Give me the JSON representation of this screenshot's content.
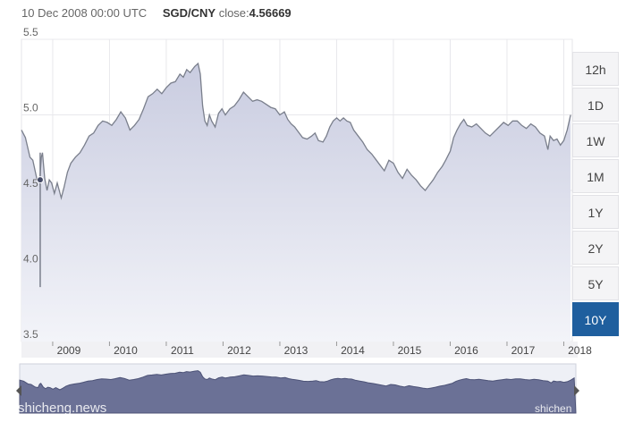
{
  "header": {
    "date": "10 Dec 2008 00:00 UTC",
    "pair": "SGD/CNY",
    "close_label": "close:",
    "close_value": "4.56669"
  },
  "range_buttons": [
    {
      "label": "12h",
      "active": false
    },
    {
      "label": "1D",
      "active": false
    },
    {
      "label": "1W",
      "active": false
    },
    {
      "label": "1M",
      "active": false
    },
    {
      "label": "1Y",
      "active": false
    },
    {
      "label": "2Y",
      "active": false
    },
    {
      "label": "5Y",
      "active": false
    },
    {
      "label": "10Y",
      "active": true
    }
  ],
  "watermarks": {
    "left": "shicheng.news",
    "right": "shichen"
  },
  "colors": {
    "line": "#7a7f8c",
    "area_top": "#c9cce0",
    "area_bottom": "#f3f4f9",
    "active_button": "#1f5f9e",
    "grid": "#e8e8ec",
    "navigator_fill": "#6b7196"
  },
  "chart_data": {
    "type": "area",
    "series": [
      {
        "points": [
          [
            "2008.45",
            4.9
          ],
          [
            "2008.52",
            4.85
          ],
          [
            "2008.60",
            4.72
          ],
          [
            "2008.65",
            4.7
          ],
          [
            "2008.72",
            4.58
          ],
          [
            "2008.77",
            4.55
          ],
          [
            "2008.80",
            4.72
          ],
          [
            "2008.82",
            4.75
          ],
          [
            "2008.86",
            4.58
          ],
          [
            "2008.90",
            4.5
          ],
          [
            "2008.94",
            4.57
          ],
          [
            "2008.98",
            4.55
          ],
          [
            "2009.03",
            4.48
          ],
          [
            "2009.08",
            4.55
          ],
          [
            "2009.15",
            4.45
          ],
          [
            "2009.20",
            4.52
          ],
          [
            "2009.26",
            4.62
          ],
          [
            "2009.32",
            4.68
          ],
          [
            "2009.40",
            4.72
          ],
          [
            "2009.48",
            4.75
          ],
          [
            "2009.56",
            4.8
          ],
          [
            "2009.64",
            4.86
          ],
          [
            "2009.72",
            4.88
          ],
          [
            "2009.80",
            4.93
          ],
          [
            "2009.88",
            4.96
          ],
          [
            "2009.96",
            4.95
          ],
          [
            "2010.04",
            4.93
          ],
          [
            "2010.12",
            4.97
          ],
          [
            "2010.20",
            5.02
          ],
          [
            "2010.28",
            4.98
          ],
          [
            "2010.36",
            4.9
          ],
          [
            "2010.44",
            4.93
          ],
          [
            "2010.52",
            4.97
          ],
          [
            "2010.60",
            5.04
          ],
          [
            "2010.68",
            5.12
          ],
          [
            "2010.76",
            5.14
          ],
          [
            "2010.84",
            5.17
          ],
          [
            "2010.92",
            5.14
          ],
          [
            "2011.00",
            5.18
          ],
          [
            "2011.08",
            5.21
          ],
          [
            "2011.16",
            5.22
          ],
          [
            "2011.24",
            5.27
          ],
          [
            "2011.30",
            5.25
          ],
          [
            "2011.36",
            5.3
          ],
          [
            "2011.42",
            5.28
          ],
          [
            "2011.50",
            5.32
          ],
          [
            "2011.56",
            5.34
          ],
          [
            "2011.60",
            5.27
          ],
          [
            "2011.64",
            5.06
          ],
          [
            "2011.68",
            4.96
          ],
          [
            "2011.72",
            4.93
          ],
          [
            "2011.76",
            5.0
          ],
          [
            "2011.80",
            4.96
          ],
          [
            "2011.86",
            4.92
          ],
          [
            "2011.92",
            5.01
          ],
          [
            "2011.98",
            5.04
          ],
          [
            "2012.04",
            5.0
          ],
          [
            "2012.12",
            5.04
          ],
          [
            "2012.20",
            5.06
          ],
          [
            "2012.28",
            5.1
          ],
          [
            "2012.36",
            5.15
          ],
          [
            "2012.44",
            5.12
          ],
          [
            "2012.52",
            5.09
          ],
          [
            "2012.60",
            5.1
          ],
          [
            "2012.68",
            5.09
          ],
          [
            "2012.76",
            5.07
          ],
          [
            "2012.84",
            5.05
          ],
          [
            "2012.92",
            5.04
          ],
          [
            "2013.00",
            5.0
          ],
          [
            "2013.08",
            5.02
          ],
          [
            "2013.14",
            4.97
          ],
          [
            "2013.20",
            4.94
          ],
          [
            "2013.26",
            4.92
          ],
          [
            "2013.32",
            4.89
          ],
          [
            "2013.40",
            4.85
          ],
          [
            "2013.48",
            4.84
          ],
          [
            "2013.56",
            4.86
          ],
          [
            "2013.62",
            4.88
          ],
          [
            "2013.68",
            4.83
          ],
          [
            "2013.76",
            4.82
          ],
          [
            "2013.82",
            4.86
          ],
          [
            "2013.88",
            4.92
          ],
          [
            "2013.94",
            4.96
          ],
          [
            "2014.00",
            4.98
          ],
          [
            "2014.06",
            4.96
          ],
          [
            "2014.12",
            4.98
          ],
          [
            "2014.18",
            4.96
          ],
          [
            "2014.24",
            4.95
          ],
          [
            "2014.30",
            4.9
          ],
          [
            "2014.38",
            4.86
          ],
          [
            "2014.46",
            4.82
          ],
          [
            "2014.54",
            4.77
          ],
          [
            "2014.62",
            4.74
          ],
          [
            "2014.70",
            4.7
          ],
          [
            "2014.76",
            4.67
          ],
          [
            "2014.84",
            4.63
          ],
          [
            "2014.92",
            4.7
          ],
          [
            "2015.00",
            4.68
          ],
          [
            "2015.08",
            4.62
          ],
          [
            "2015.16",
            4.58
          ],
          [
            "2015.24",
            4.64
          ],
          [
            "2015.32",
            4.6
          ],
          [
            "2015.40",
            4.57
          ],
          [
            "2015.48",
            4.53
          ],
          [
            "2015.56",
            4.5
          ],
          [
            "2015.62",
            4.53
          ],
          [
            "2015.70",
            4.57
          ],
          [
            "2015.78",
            4.62
          ],
          [
            "2015.86",
            4.66
          ],
          [
            "2015.92",
            4.7
          ],
          [
            "2016.00",
            4.76
          ],
          [
            "2016.06",
            4.85
          ],
          [
            "2016.12",
            4.9
          ],
          [
            "2016.18",
            4.94
          ],
          [
            "2016.24",
            4.97
          ],
          [
            "2016.30",
            4.93
          ],
          [
            "2016.38",
            4.92
          ],
          [
            "2016.46",
            4.94
          ],
          [
            "2016.54",
            4.91
          ],
          [
            "2016.62",
            4.88
          ],
          [
            "2016.70",
            4.86
          ],
          [
            "2016.78",
            4.89
          ],
          [
            "2016.86",
            4.92
          ],
          [
            "2016.94",
            4.95
          ],
          [
            "2017.02",
            4.93
          ],
          [
            "2017.10",
            4.96
          ],
          [
            "2017.18",
            4.96
          ],
          [
            "2017.26",
            4.93
          ],
          [
            "2017.34",
            4.91
          ],
          [
            "2017.42",
            4.94
          ],
          [
            "2017.50",
            4.92
          ],
          [
            "2017.58",
            4.88
          ],
          [
            "2017.66",
            4.86
          ],
          [
            "2017.72",
            4.77
          ],
          [
            "2017.76",
            4.86
          ],
          [
            "2017.82",
            4.83
          ],
          [
            "2017.88",
            4.84
          ],
          [
            "2017.94",
            4.8
          ],
          [
            "2018.00",
            4.83
          ],
          [
            "2018.06",
            4.9
          ],
          [
            "2018.12",
            5.0
          ]
        ],
        "spike": {
          "x": 2008.78,
          "low": 3.86,
          "high": 4.75
        }
      }
    ],
    "marker": {
      "x": 2008.78,
      "y": 4.57,
      "label": "4.56669"
    },
    "x_ticks": [
      "2009",
      "2010",
      "2011",
      "2012",
      "2013",
      "2014",
      "2015",
      "2016",
      "2017",
      "2018"
    ],
    "y_ticks": [
      "3.5",
      "4.0",
      "4.5",
      "5.0",
      "5.5"
    ],
    "xlim": [
      2008.45,
      2018.15
    ],
    "ylim": [
      3.5,
      5.5
    ],
    "grid": true
  }
}
